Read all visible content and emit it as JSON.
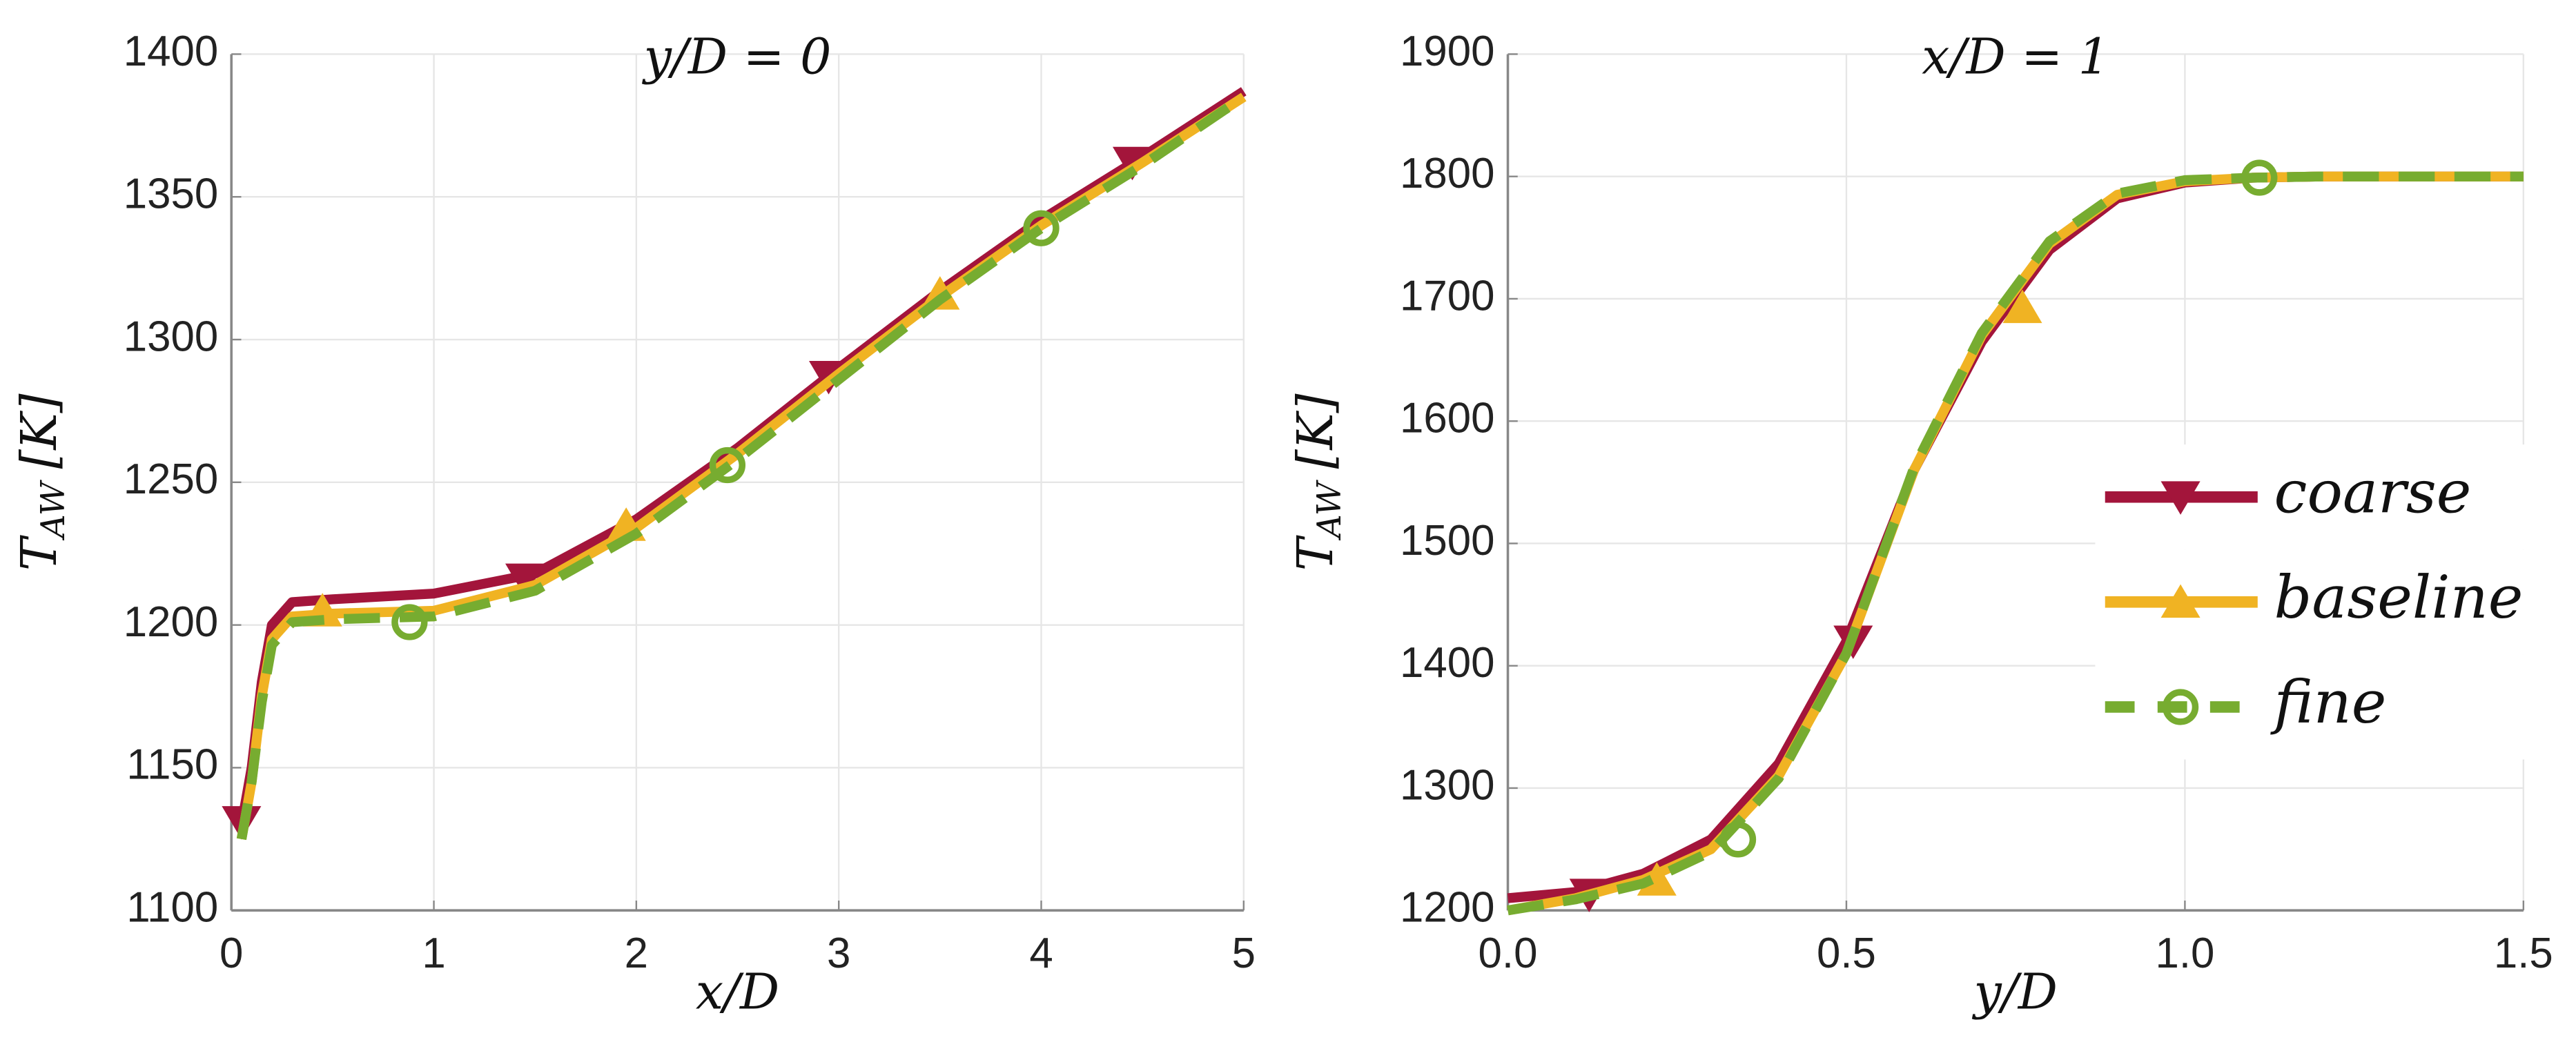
{
  "chart_data": [
    {
      "type": "line",
      "title": "y/D = 0",
      "xlabel": "x/D",
      "ylabel": {
        "main": "T",
        "sub": "AW",
        "unit": "[K]"
      },
      "xlim": [
        0,
        5
      ],
      "xticks": [
        0,
        1,
        2,
        3,
        4,
        5
      ],
      "ylim": [
        1100,
        1400
      ],
      "yticks": [
        1100,
        1150,
        1200,
        1250,
        1300,
        1350,
        1400
      ],
      "grid": true,
      "legend": false,
      "series": [
        {
          "color": "#a3153b",
          "marker": "triangle-down",
          "dash": false,
          "x": [
            0.05,
            0.1,
            0.15,
            0.2,
            0.3,
            0.5,
            1.0,
            1.5,
            2.0,
            2.5,
            3.0,
            3.5,
            4.0,
            4.5,
            5.0
          ],
          "values": [
            1130,
            1150,
            1180,
            1200,
            1208,
            1209,
            1211,
            1218,
            1237,
            1262,
            1290,
            1317,
            1342,
            1364,
            1387
          ],
          "markers": {
            "x": [
              0.05,
              1.45,
              2.95,
              4.45
            ],
            "values": [
              1131,
              1216,
              1287,
              1362
            ]
          }
        },
        {
          "color": "#f0b323",
          "marker": "triangle-up",
          "dash": false,
          "x": [
            0.05,
            0.1,
            0.15,
            0.2,
            0.3,
            0.5,
            1.0,
            1.5,
            2.0,
            2.5,
            3.0,
            3.5,
            4.0,
            4.5,
            5.0
          ],
          "values": [
            1125,
            1145,
            1175,
            1195,
            1203,
            1204,
            1205,
            1214,
            1234,
            1260,
            1288,
            1315,
            1340,
            1362,
            1385
          ],
          "markers": {
            "x": [
              0.45,
              1.95,
              3.5
            ],
            "values": [
              1205,
              1235,
              1316
            ]
          }
        },
        {
          "color": "#77ac30",
          "marker": "circle",
          "dash": true,
          "x": [
            0.05,
            0.1,
            0.15,
            0.2,
            0.3,
            0.5,
            1.0,
            1.5,
            2.0,
            2.5,
            3.0,
            3.5,
            4.0,
            4.5,
            5.0
          ],
          "values": [
            1125,
            1145,
            1173,
            1193,
            1201,
            1202,
            1203,
            1212,
            1232,
            1258,
            1286,
            1314,
            1339,
            1361,
            1385
          ],
          "markers": {
            "x": [
              0.88,
              2.45,
              4.0
            ],
            "values": [
              1201,
              1256,
              1339
            ]
          }
        }
      ]
    },
    {
      "type": "line",
      "title": "x/D = 1",
      "xlabel": "y/D",
      "ylabel": {
        "main": "T",
        "sub": "AW",
        "unit": "[K]"
      },
      "xlim": [
        0,
        1.5
      ],
      "xticks": [
        {
          "value": 0,
          "label": "0.0"
        },
        0.5,
        {
          "value": 1,
          "label": "1.0"
        },
        1.5
      ],
      "ylim": [
        1200,
        1900
      ],
      "yticks": [
        1200,
        1300,
        1400,
        1500,
        1600,
        1700,
        1800,
        1900
      ],
      "grid": true,
      "legend": "right",
      "series": [
        {
          "name": "coarse",
          "color": "#a3153b",
          "marker": "triangle-down",
          "dash": false,
          "x": [
            0,
            0.1,
            0.2,
            0.3,
            0.4,
            0.5,
            0.6,
            0.7,
            0.8,
            0.9,
            1.0,
            1.1,
            1.2,
            1.5
          ],
          "values": [
            1210,
            1215,
            1230,
            1258,
            1320,
            1420,
            1560,
            1665,
            1740,
            1782,
            1795,
            1799,
            1800,
            1800
          ],
          "markers": {
            "x": [
              0.12,
              0.51
            ],
            "values": [
              1213,
              1420
            ]
          }
        },
        {
          "name": "baseline",
          "color": "#f0b323",
          "marker": "triangle-up",
          "dash": false,
          "x": [
            0,
            0.1,
            0.2,
            0.3,
            0.4,
            0.5,
            0.6,
            0.7,
            0.8,
            0.9,
            1.0,
            1.1,
            1.2,
            1.5
          ],
          "values": [
            1200,
            1210,
            1225,
            1250,
            1310,
            1410,
            1560,
            1670,
            1745,
            1785,
            1796,
            1799,
            1800,
            1800
          ],
          "markers": {
            "x": [
              0.22,
              0.76
            ],
            "values": [
              1225,
              1693
            ]
          }
        },
        {
          "name": "fine",
          "color": "#77ac30",
          "marker": "circle",
          "dash": true,
          "x": [
            0,
            0.1,
            0.2,
            0.3,
            0.4,
            0.5,
            0.6,
            0.7,
            0.8,
            0.9,
            1.0,
            1.1,
            1.2,
            1.5
          ],
          "values": [
            1200,
            1209,
            1222,
            1248,
            1308,
            1410,
            1562,
            1672,
            1747,
            1786,
            1797,
            1799,
            1800,
            1800
          ],
          "markers": {
            "x": [
              0.34,
              1.11
            ],
            "values": [
              1258,
              1799
            ]
          }
        }
      ]
    }
  ]
}
